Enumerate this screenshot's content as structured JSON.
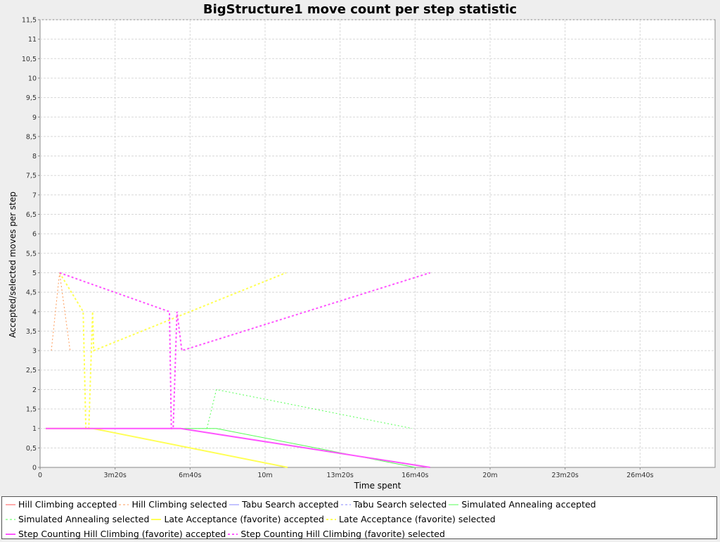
{
  "chart_data": {
    "type": "line",
    "title": "BigStructure1 move count per step statistic",
    "xlabel": "Time spent",
    "ylabel": "Accepted/selected moves per step",
    "xlim": [
      0,
      1800
    ],
    "ylim": [
      0,
      11.5
    ],
    "grid": true,
    "legend_position": "bottom",
    "x_ticks": [
      {
        "value": 0,
        "label": "0"
      },
      {
        "value": 200,
        "label": "3m20s"
      },
      {
        "value": 400,
        "label": "6m40s"
      },
      {
        "value": 600,
        "label": "10m"
      },
      {
        "value": 800,
        "label": "13m20s"
      },
      {
        "value": 1000,
        "label": "16m40s"
      },
      {
        "value": 1200,
        "label": "20m"
      },
      {
        "value": 1400,
        "label": "23m20s"
      },
      {
        "value": 1600,
        "label": "26m40s"
      }
    ],
    "y_ticks": [
      {
        "value": 0,
        "label": "0"
      },
      {
        "value": 0.5,
        "label": "0,5"
      },
      {
        "value": 1,
        "label": "1"
      },
      {
        "value": 1.5,
        "label": "1,5"
      },
      {
        "value": 2,
        "label": "2"
      },
      {
        "value": 2.5,
        "label": "2,5"
      },
      {
        "value": 3,
        "label": "3"
      },
      {
        "value": 3.5,
        "label": "3,5"
      },
      {
        "value": 4,
        "label": "4"
      },
      {
        "value": 4.5,
        "label": "4,5"
      },
      {
        "value": 5,
        "label": "5"
      },
      {
        "value": 5.5,
        "label": "5,5"
      },
      {
        "value": 6,
        "label": "6"
      },
      {
        "value": 6.5,
        "label": "6,5"
      },
      {
        "value": 7,
        "label": "7"
      },
      {
        "value": 7.5,
        "label": "7,5"
      },
      {
        "value": 8,
        "label": "8"
      },
      {
        "value": 8.5,
        "label": "8,5"
      },
      {
        "value": 9,
        "label": "9"
      },
      {
        "value": 9.5,
        "label": "9,5"
      },
      {
        "value": 10,
        "label": "10"
      },
      {
        "value": 10.5,
        "label": "10,5"
      },
      {
        "value": 11,
        "label": "11"
      },
      {
        "value": 11.5,
        "label": "11,5"
      }
    ],
    "series": [
      {
        "name": "Hill Climbing accepted",
        "color": "#ff5555",
        "style": "solid",
        "favorite": false,
        "points": [
          [
            15,
            1
          ],
          [
            45,
            1
          ]
        ]
      },
      {
        "name": "Hill Climbing selected",
        "color": "#ff9955",
        "style": "dashed",
        "favorite": false,
        "points": [
          [
            30,
            3
          ],
          [
            52,
            5
          ],
          [
            80,
            3
          ]
        ]
      },
      {
        "name": "Tabu Search accepted",
        "color": "#8888ff",
        "style": "solid",
        "favorite": false,
        "points": [
          [
            20,
            1
          ],
          [
            380,
            1
          ]
        ]
      },
      {
        "name": "Tabu Search selected",
        "color": "#8888ff",
        "style": "dashed",
        "favorite": false,
        "points": []
      },
      {
        "name": "Simulated Annealing accepted",
        "color": "#55ff55",
        "style": "solid",
        "favorite": false,
        "points": [
          [
            15,
            1
          ],
          [
            470,
            1
          ],
          [
            1000,
            0
          ]
        ]
      },
      {
        "name": "Simulated Annealing selected",
        "color": "#55ff55",
        "style": "dashed",
        "favorite": false,
        "points": [
          [
            445,
            1
          ],
          [
            470,
            2
          ],
          [
            992,
            1
          ]
        ]
      },
      {
        "name": "Late Acceptance (favorite) accepted",
        "color": "#ffff55",
        "style": "solid",
        "favorite": true,
        "points": [
          [
            15,
            1
          ],
          [
            140,
            1
          ],
          [
            660,
            0
          ]
        ]
      },
      {
        "name": "Late Acceptance (favorite) selected",
        "color": "#ffff55",
        "style": "dashed",
        "favorite": true,
        "points": [
          [
            52,
            5
          ],
          [
            115,
            4
          ],
          [
            122,
            1
          ],
          [
            130,
            1
          ],
          [
            140,
            4
          ],
          [
            143,
            3
          ],
          [
            656,
            5
          ]
        ]
      },
      {
        "name": "Step Counting Hill Climbing (favorite) accepted",
        "color": "#ff55ff",
        "style": "solid",
        "favorite": true,
        "points": [
          [
            15,
            1
          ],
          [
            375,
            1
          ],
          [
            1040,
            0
          ]
        ]
      },
      {
        "name": "Step Counting Hill Climbing (favorite) selected",
        "color": "#ff55ff",
        "style": "dashed",
        "favorite": true,
        "points": [
          [
            52,
            5
          ],
          [
            345,
            4
          ],
          [
            350,
            1
          ],
          [
            355,
            1
          ],
          [
            365,
            4
          ],
          [
            378,
            3
          ],
          [
            1040,
            5
          ]
        ]
      }
    ]
  }
}
